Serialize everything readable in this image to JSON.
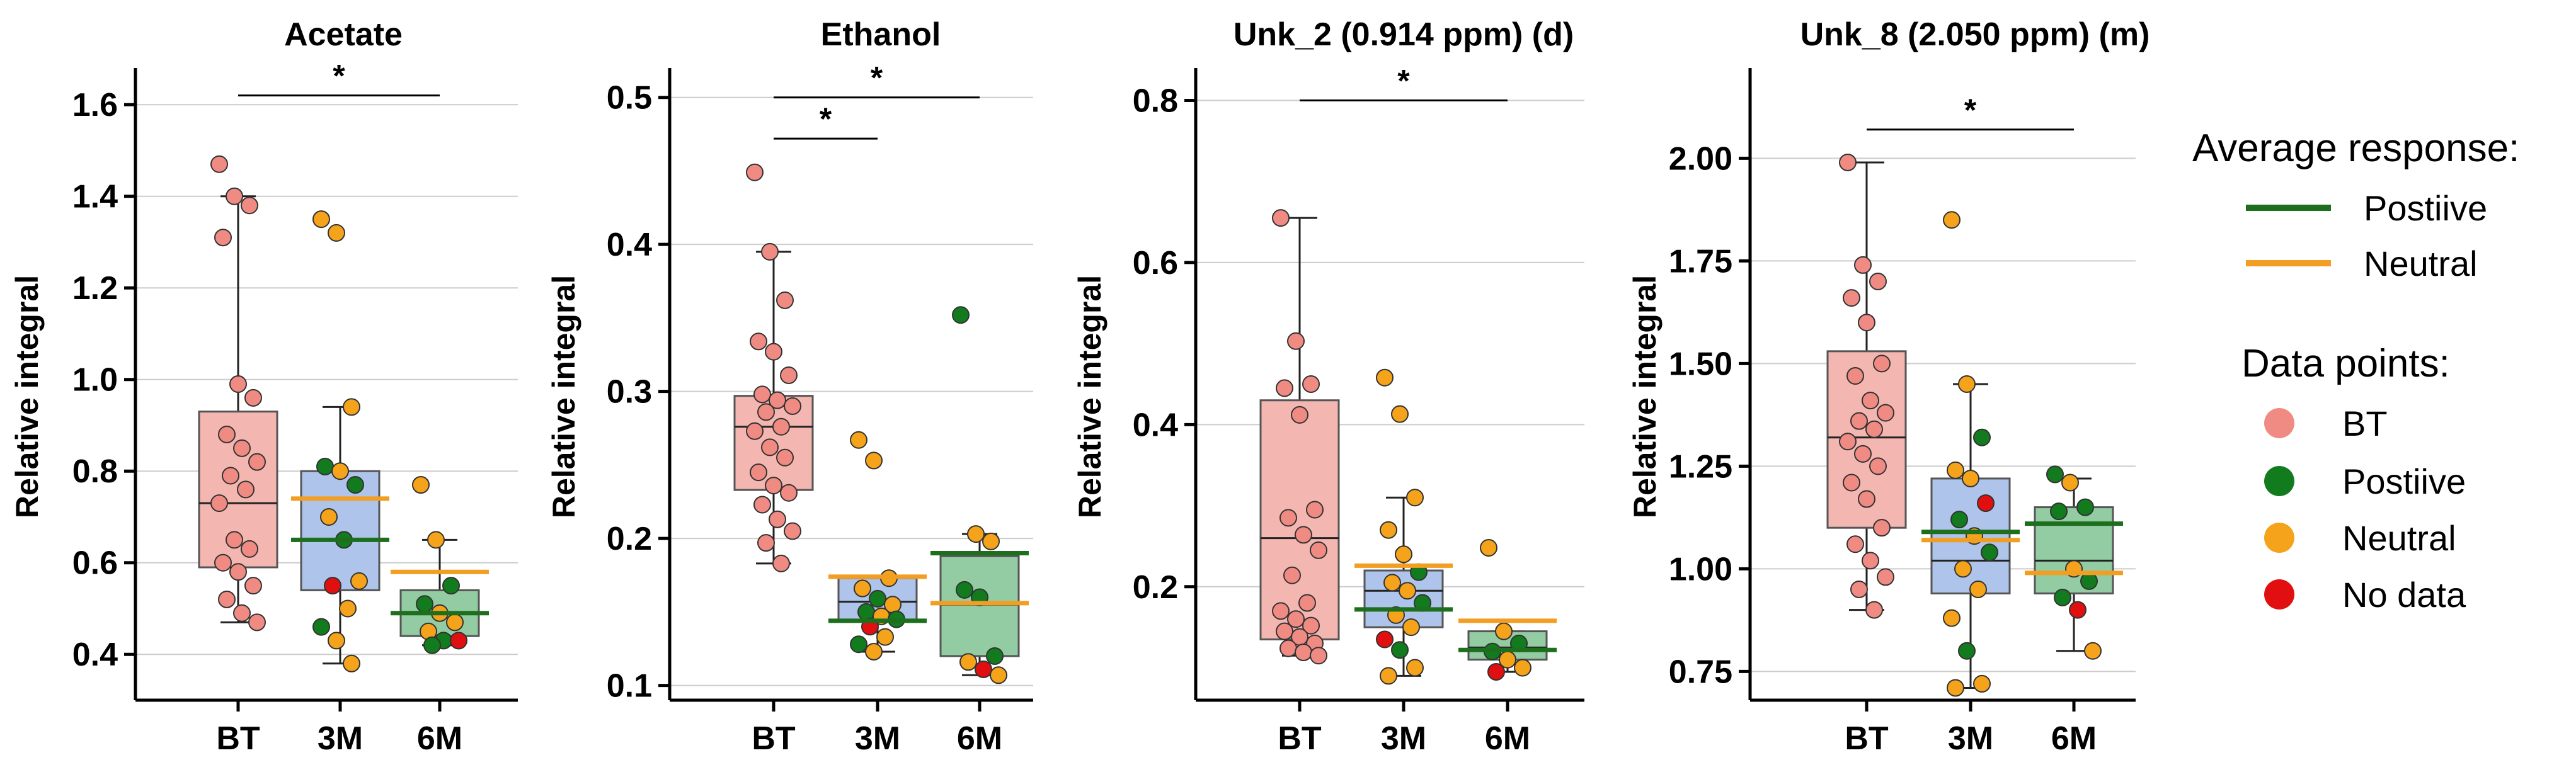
{
  "chart_data": [
    {
      "type": "box",
      "title": "Acetate",
      "ylabel": "Relative integral",
      "ylim": [
        0.3,
        1.68
      ],
      "yticks": [
        0.4,
        0.6,
        0.8,
        1.0,
        1.2,
        1.4,
        1.6
      ],
      "ytick_labels": [
        "0.4",
        "0.6",
        "0.8",
        "1.0",
        "1.2",
        "1.4",
        "1.6"
      ],
      "categories": [
        "BT",
        "3M",
        "6M"
      ],
      "boxes": [
        {
          "q1": 0.59,
          "median": 0.73,
          "q3": 0.93,
          "whisker_low": 0.47,
          "whisker_high": 1.4
        },
        {
          "q1": 0.54,
          "median": 0.65,
          "q3": 0.8,
          "whisker_low": 0.38,
          "whisker_high": 0.94
        },
        {
          "q1": 0.44,
          "median": 0.49,
          "q3": 0.54,
          "whisker_low": 0.42,
          "whisker_high": 0.65
        }
      ],
      "avg_lines": [
        null,
        {
          "positive": 0.65,
          "neutral": 0.74
        },
        {
          "positive": 0.49,
          "neutral": 0.58
        }
      ],
      "points": [
        [
          [
            1.47,
            "BT"
          ],
          [
            1.4,
            "BT"
          ],
          [
            1.38,
            "BT"
          ],
          [
            1.31,
            "BT"
          ],
          [
            0.99,
            "BT"
          ],
          [
            0.96,
            "BT"
          ],
          [
            0.88,
            "BT"
          ],
          [
            0.85,
            "BT"
          ],
          [
            0.82,
            "BT"
          ],
          [
            0.79,
            "BT"
          ],
          [
            0.76,
            "BT"
          ],
          [
            0.73,
            "BT"
          ],
          [
            0.65,
            "BT"
          ],
          [
            0.63,
            "BT"
          ],
          [
            0.6,
            "BT"
          ],
          [
            0.58,
            "BT"
          ],
          [
            0.55,
            "BT"
          ],
          [
            0.52,
            "BT"
          ],
          [
            0.49,
            "BT"
          ],
          [
            0.47,
            "BT"
          ]
        ],
        [
          [
            1.35,
            "Neutral"
          ],
          [
            1.32,
            "Neutral"
          ],
          [
            0.94,
            "Neutral"
          ],
          [
            0.81,
            "Positive"
          ],
          [
            0.8,
            "Neutral"
          ],
          [
            0.77,
            "Positive"
          ],
          [
            0.7,
            "Neutral"
          ],
          [
            0.65,
            "Positive"
          ],
          [
            0.56,
            "Neutral"
          ],
          [
            0.55,
            "No data"
          ],
          [
            0.5,
            "Neutral"
          ],
          [
            0.46,
            "Positive"
          ],
          [
            0.43,
            "Neutral"
          ],
          [
            0.38,
            "Neutral"
          ]
        ],
        [
          [
            0.77,
            "Neutral"
          ],
          [
            0.65,
            "Neutral"
          ],
          [
            0.55,
            "Positive"
          ],
          [
            0.51,
            "Positive"
          ],
          [
            0.49,
            "Neutral"
          ],
          [
            0.47,
            "Neutral"
          ],
          [
            0.45,
            "Neutral"
          ],
          [
            0.43,
            "Positive"
          ],
          [
            0.43,
            "No data"
          ],
          [
            0.42,
            "Positive"
          ]
        ]
      ],
      "significance": [
        {
          "from": 0,
          "to": 2,
          "y": 1.62,
          "label": "*"
        }
      ]
    },
    {
      "type": "box",
      "title": "Ethanol",
      "ylabel": "Relative integral",
      "ylim": [
        0.09,
        0.52
      ],
      "yticks": [
        0.1,
        0.2,
        0.3,
        0.4,
        0.5
      ],
      "ytick_labels": [
        "0.1",
        "0.2",
        "0.3",
        "0.4",
        "0.5"
      ],
      "categories": [
        "BT",
        "3M",
        "6M"
      ],
      "boxes": [
        {
          "q1": 0.233,
          "median": 0.276,
          "q3": 0.297,
          "whisker_low": 0.183,
          "whisker_high": 0.395
        },
        {
          "q1": 0.144,
          "median": 0.157,
          "q3": 0.173,
          "whisker_low": 0.123,
          "whisker_high": 0.173
        },
        {
          "q1": 0.12,
          "median": 0.155,
          "q3": 0.188,
          "whisker_low": 0.107,
          "whisker_high": 0.203
        }
      ],
      "avg_lines": [
        null,
        {
          "positive": 0.144,
          "neutral": 0.174
        },
        {
          "positive": 0.19,
          "neutral": 0.156
        }
      ],
      "points": [
        [
          [
            0.449,
            "BT"
          ],
          [
            0.395,
            "BT"
          ],
          [
            0.362,
            "BT"
          ],
          [
            0.334,
            "BT"
          ],
          [
            0.327,
            "BT"
          ],
          [
            0.311,
            "BT"
          ],
          [
            0.298,
            "BT"
          ],
          [
            0.294,
            "BT"
          ],
          [
            0.29,
            "BT"
          ],
          [
            0.286,
            "BT"
          ],
          [
            0.276,
            "BT"
          ],
          [
            0.273,
            "BT"
          ],
          [
            0.262,
            "BT"
          ],
          [
            0.255,
            "BT"
          ],
          [
            0.245,
            "BT"
          ],
          [
            0.236,
            "BT"
          ],
          [
            0.231,
            "BT"
          ],
          [
            0.223,
            "BT"
          ],
          [
            0.213,
            "BT"
          ],
          [
            0.205,
            "BT"
          ],
          [
            0.197,
            "BT"
          ],
          [
            0.183,
            "BT"
          ]
        ],
        [
          [
            0.267,
            "Neutral"
          ],
          [
            0.253,
            "Neutral"
          ],
          [
            0.173,
            "Neutral"
          ],
          [
            0.166,
            "Neutral"
          ],
          [
            0.159,
            "Positive"
          ],
          [
            0.155,
            "Neutral"
          ],
          [
            0.15,
            "Positive"
          ],
          [
            0.147,
            "Neutral"
          ],
          [
            0.145,
            "Positive"
          ],
          [
            0.14,
            "No data"
          ],
          [
            0.133,
            "Neutral"
          ],
          [
            0.128,
            "Positive"
          ],
          [
            0.123,
            "Neutral"
          ]
        ],
        [
          [
            0.352,
            "Positive"
          ],
          [
            0.203,
            "Neutral"
          ],
          [
            0.198,
            "Neutral"
          ],
          [
            0.165,
            "Positive"
          ],
          [
            0.16,
            "Positive"
          ],
          [
            0.12,
            "Positive"
          ],
          [
            0.116,
            "Neutral"
          ],
          [
            0.111,
            "No data"
          ],
          [
            0.107,
            "Neutral"
          ]
        ]
      ],
      "significance": [
        {
          "from": 0,
          "to": 2,
          "y": 0.5,
          "label": "*"
        },
        {
          "from": 0,
          "to": 1,
          "y": 0.472,
          "label": "*"
        }
      ]
    },
    {
      "type": "box",
      "title": "Unk_2 (0.914 ppm) (d)",
      "ylabel": "Relative integral",
      "ylim": [
        0.06,
        0.84
      ],
      "yticks": [
        0.2,
        0.4,
        0.6,
        0.8
      ],
      "ytick_labels": [
        "0.2",
        "0.4",
        "0.6",
        "0.8"
      ],
      "categories": [
        "BT",
        "3M",
        "6M"
      ],
      "boxes": [
        {
          "q1": 0.135,
          "median": 0.26,
          "q3": 0.43,
          "whisker_low": 0.115,
          "whisker_high": 0.655
        },
        {
          "q1": 0.15,
          "median": 0.195,
          "q3": 0.22,
          "whisker_low": 0.09,
          "whisker_high": 0.31
        },
        {
          "q1": 0.11,
          "median": 0.125,
          "q3": 0.145,
          "whisker_low": 0.095,
          "whisker_high": 0.145
        }
      ],
      "avg_lines": [
        null,
        {
          "positive": 0.172,
          "neutral": 0.226
        },
        {
          "positive": 0.122,
          "neutral": 0.158
        }
      ],
      "points": [
        [
          [
            0.655,
            "BT"
          ],
          [
            0.503,
            "BT"
          ],
          [
            0.45,
            "BT"
          ],
          [
            0.445,
            "BT"
          ],
          [
            0.412,
            "BT"
          ],
          [
            0.295,
            "BT"
          ],
          [
            0.285,
            "BT"
          ],
          [
            0.264,
            "BT"
          ],
          [
            0.245,
            "BT"
          ],
          [
            0.214,
            "BT"
          ],
          [
            0.18,
            "BT"
          ],
          [
            0.17,
            "BT"
          ],
          [
            0.16,
            "BT"
          ],
          [
            0.152,
            "BT"
          ],
          [
            0.145,
            "BT"
          ],
          [
            0.138,
            "BT"
          ],
          [
            0.13,
            "BT"
          ],
          [
            0.124,
            "BT"
          ],
          [
            0.119,
            "BT"
          ],
          [
            0.115,
            "BT"
          ]
        ],
        [
          [
            0.458,
            "Neutral"
          ],
          [
            0.413,
            "Neutral"
          ],
          [
            0.31,
            "Neutral"
          ],
          [
            0.27,
            "Neutral"
          ],
          [
            0.24,
            "Neutral"
          ],
          [
            0.218,
            "Positive"
          ],
          [
            0.205,
            "Neutral"
          ],
          [
            0.195,
            "Neutral"
          ],
          [
            0.18,
            "Positive"
          ],
          [
            0.165,
            "Neutral"
          ],
          [
            0.15,
            "Neutral"
          ],
          [
            0.135,
            "No data"
          ],
          [
            0.122,
            "Positive"
          ],
          [
            0.1,
            "Neutral"
          ],
          [
            0.09,
            "Neutral"
          ]
        ],
        [
          [
            0.248,
            "Neutral"
          ],
          [
            0.145,
            "Neutral"
          ],
          [
            0.13,
            "Positive"
          ],
          [
            0.12,
            "Positive"
          ],
          [
            0.11,
            "Neutral"
          ],
          [
            0.1,
            "Neutral"
          ],
          [
            0.095,
            "No data"
          ]
        ]
      ],
      "significance": [
        {
          "from": 0,
          "to": 2,
          "y": 0.8,
          "label": "*"
        }
      ]
    },
    {
      "type": "box",
      "title": "Unk_8 (2.050 ppm) (m)",
      "ylabel": "Relative integral",
      "ylim": [
        0.68,
        2.22
      ],
      "yticks": [
        0.75,
        1.0,
        1.25,
        1.5,
        1.75,
        2.0
      ],
      "ytick_labels": [
        "0.75",
        "1.00",
        "1.25",
        "1.50",
        "1.75",
        "2.00"
      ],
      "categories": [
        "BT",
        "3M",
        "6M"
      ],
      "boxes": [
        {
          "q1": 1.1,
          "median": 1.32,
          "q3": 1.53,
          "whisker_low": 0.9,
          "whisker_high": 1.99
        },
        {
          "q1": 0.94,
          "median": 1.02,
          "q3": 1.22,
          "whisker_low": 0.71,
          "whisker_high": 1.45
        },
        {
          "q1": 0.94,
          "median": 1.02,
          "q3": 1.15,
          "whisker_low": 0.8,
          "whisker_high": 1.22
        }
      ],
      "avg_lines": [
        null,
        {
          "positive": 1.09,
          "neutral": 1.07
        },
        {
          "positive": 1.11,
          "neutral": 0.99
        }
      ],
      "points": [
        [
          [
            1.99,
            "BT"
          ],
          [
            1.74,
            "BT"
          ],
          [
            1.7,
            "BT"
          ],
          [
            1.66,
            "BT"
          ],
          [
            1.6,
            "BT"
          ],
          [
            1.5,
            "BT"
          ],
          [
            1.47,
            "BT"
          ],
          [
            1.41,
            "BT"
          ],
          [
            1.38,
            "BT"
          ],
          [
            1.36,
            "BT"
          ],
          [
            1.34,
            "BT"
          ],
          [
            1.31,
            "BT"
          ],
          [
            1.28,
            "BT"
          ],
          [
            1.25,
            "BT"
          ],
          [
            1.21,
            "BT"
          ],
          [
            1.17,
            "BT"
          ],
          [
            1.1,
            "BT"
          ],
          [
            1.06,
            "BT"
          ],
          [
            1.02,
            "BT"
          ],
          [
            0.98,
            "BT"
          ],
          [
            0.95,
            "BT"
          ],
          [
            0.9,
            "BT"
          ]
        ],
        [
          [
            1.85,
            "Neutral"
          ],
          [
            1.45,
            "Neutral"
          ],
          [
            1.32,
            "Positive"
          ],
          [
            1.24,
            "Neutral"
          ],
          [
            1.22,
            "Neutral"
          ],
          [
            1.16,
            "No data"
          ],
          [
            1.12,
            "Positive"
          ],
          [
            1.08,
            "Neutral"
          ],
          [
            1.04,
            "Positive"
          ],
          [
            1.0,
            "Neutral"
          ],
          [
            0.95,
            "Neutral"
          ],
          [
            0.88,
            "Neutral"
          ],
          [
            0.8,
            "Positive"
          ],
          [
            0.72,
            "Neutral"
          ],
          [
            0.71,
            "Neutral"
          ]
        ],
        [
          [
            1.23,
            "Positive"
          ],
          [
            1.21,
            "Neutral"
          ],
          [
            1.15,
            "Positive"
          ],
          [
            1.14,
            "Positive"
          ],
          [
            1.0,
            "Neutral"
          ],
          [
            0.97,
            "Positive"
          ],
          [
            0.93,
            "Positive"
          ],
          [
            0.9,
            "No data"
          ],
          [
            0.8,
            "Neutral"
          ]
        ]
      ],
      "significance": [
        {
          "from": 0,
          "to": 2,
          "y": 2.07,
          "label": "*"
        }
      ]
    }
  ],
  "legend": {
    "average_title": "Average response:",
    "average_items": [
      {
        "label": "Postiive",
        "key": "positive"
      },
      {
        "label": "Neutral",
        "key": "neutral"
      }
    ],
    "points_title": "Data points:",
    "points_items": [
      {
        "label": "BT",
        "key": "BT"
      },
      {
        "label": "Postiive",
        "key": "Positive"
      },
      {
        "label": "Neutral",
        "key": "Neutral"
      },
      {
        "label": "No data",
        "key": "No data"
      }
    ]
  },
  "colors": {
    "box_BT": "#f4b6b0",
    "box_3M": "#aec4ea",
    "box_6M": "#93cba3",
    "point_BT": "#f08b84",
    "point_Positive": "#127b1e",
    "point_Neutral": "#f5a31a",
    "point_No data": "#e10f0f",
    "avg_positive": "#1d6f1d",
    "avg_neutral": "#f29e22",
    "grid": "#cccccc",
    "axis": "#000000"
  }
}
